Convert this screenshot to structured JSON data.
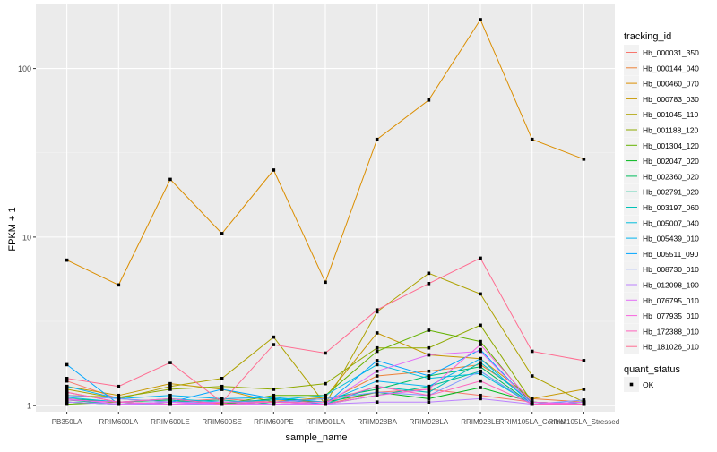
{
  "chart_data": {
    "type": "line",
    "xlabel": "sample_name",
    "ylabel": "FPKM + 1",
    "y_scale": "log10",
    "ylim": [
      0.92,
      240
    ],
    "y_ticks": [
      1,
      10,
      100
    ],
    "y_tick_labels": [
      "1",
      "10",
      "100"
    ],
    "grid": true,
    "legend_placement": "right",
    "categories": [
      "PB350LA",
      "RRIM600LA",
      "RRIM600LE",
      "RRIM600SE",
      "RRIM600PE",
      "RRIM901LA",
      "RRIM928BA",
      "RRIM928LA",
      "RRIM928LE",
      "RRIM105LA_Control",
      "RRIM105LA_Stressed"
    ],
    "legend_title": "tracking_id",
    "series": [
      {
        "name": "Hb_000031_350",
        "color": "#F8766D",
        "values": [
          1.4,
          1.1,
          1.05,
          1.1,
          1.05,
          1.02,
          1.2,
          1.25,
          1.15,
          1.05,
          1.02
        ]
      },
      {
        "name": "Hb_000144_040",
        "color": "#EC8239",
        "values": [
          1.2,
          1.05,
          1.02,
          1.04,
          1.08,
          1.05,
          1.5,
          1.6,
          1.75,
          1.1,
          1.05
        ]
      },
      {
        "name": "Hb_000460_070",
        "color": "#DB8E00",
        "values": [
          7.3,
          5.2,
          22.0,
          10.5,
          25.0,
          5.4,
          38.0,
          65.0,
          195.0,
          38.0,
          29.0
        ]
      },
      {
        "name": "Hb_000783_030",
        "color": "#C79800",
        "values": [
          1.3,
          1.15,
          1.35,
          1.25,
          1.05,
          1.12,
          2.7,
          2.0,
          1.9,
          1.1,
          1.25
        ]
      },
      {
        "name": "Hb_001045_110",
        "color": "#AEA200",
        "values": [
          1.25,
          1.1,
          1.3,
          1.45,
          2.55,
          1.02,
          3.6,
          6.1,
          4.6,
          1.5,
          1.05
        ]
      },
      {
        "name": "Hb_001188_120",
        "color": "#8FAA00",
        "values": [
          1.15,
          1.12,
          1.25,
          1.3,
          1.25,
          1.35,
          2.2,
          2.2,
          3.0,
          1.05,
          1.02
        ]
      },
      {
        "name": "Hb_001304_120",
        "color": "#64B200",
        "values": [
          1.02,
          1.05,
          1.02,
          1.02,
          1.15,
          1.15,
          2.1,
          2.8,
          2.4,
          1.02,
          1.05
        ]
      },
      {
        "name": "Hb_002047_020",
        "color": "#00B81B",
        "values": [
          1.05,
          1.02,
          1.02,
          1.02,
          1.1,
          1.05,
          1.2,
          1.1,
          1.28,
          1.05,
          1.02
        ]
      },
      {
        "name": "Hb_002360_020",
        "color": "#00BD5C",
        "values": [
          1.1,
          1.05,
          1.08,
          1.02,
          1.05,
          1.1,
          1.25,
          1.5,
          1.7,
          1.02,
          1.05
        ]
      },
      {
        "name": "Hb_002791_020",
        "color": "#00C08E",
        "values": [
          1.08,
          1.02,
          1.05,
          1.08,
          1.02,
          1.02,
          1.15,
          1.3,
          1.6,
          1.02,
          1.02
        ]
      },
      {
        "name": "Hb_003197_060",
        "color": "#00C1B7",
        "values": [
          1.05,
          1.02,
          1.02,
          1.02,
          1.05,
          1.02,
          1.3,
          1.2,
          1.8,
          1.05,
          1.02
        ]
      },
      {
        "name": "Hb_005007_040",
        "color": "#00BDDC",
        "values": [
          1.12,
          1.05,
          1.1,
          1.05,
          1.08,
          1.15,
          1.75,
          1.45,
          1.55,
          1.02,
          1.02
        ]
      },
      {
        "name": "Hb_005439_010",
        "color": "#00B4EF",
        "values": [
          1.3,
          1.1,
          1.15,
          1.1,
          1.12,
          1.05,
          1.4,
          1.3,
          1.9,
          1.02,
          1.05
        ]
      },
      {
        "name": "Hb_005511_090",
        "color": "#00A5FF",
        "values": [
          1.75,
          1.02,
          1.05,
          1.25,
          1.1,
          1.02,
          1.85,
          1.5,
          2.15,
          1.02,
          1.05
        ]
      },
      {
        "name": "Hb_008730_010",
        "color": "#7F96FF",
        "values": [
          1.15,
          1.1,
          1.05,
          1.05,
          1.05,
          1.1,
          1.2,
          1.15,
          1.6,
          1.02,
          1.08
        ]
      },
      {
        "name": "Hb_012098_190",
        "color": "#BC81FF",
        "values": [
          1.05,
          1.02,
          1.02,
          1.02,
          1.02,
          1.02,
          1.05,
          1.05,
          1.1,
          1.02,
          1.02
        ]
      },
      {
        "name": "Hb_076795_010",
        "color": "#E26EF7",
        "values": [
          1.1,
          1.02,
          1.05,
          1.02,
          1.02,
          1.02,
          1.6,
          2.0,
          2.1,
          1.02,
          1.05
        ]
      },
      {
        "name": "Hb_077935_010",
        "color": "#F863DF",
        "values": [
          1.08,
          1.05,
          1.02,
          1.05,
          1.05,
          1.02,
          1.15,
          1.25,
          2.3,
          1.05,
          1.02
        ]
      },
      {
        "name": "Hb_172388_010",
        "color": "#FF62BC",
        "values": [
          1.2,
          1.05,
          1.1,
          1.02,
          1.05,
          1.05,
          1.3,
          1.15,
          1.4,
          1.02,
          1.02
        ]
      },
      {
        "name": "Hb_181026_010",
        "color": "#FF6C91",
        "values": [
          1.45,
          1.3,
          1.8,
          1.05,
          2.3,
          2.05,
          3.7,
          5.3,
          7.5,
          2.1,
          1.85
        ]
      }
    ],
    "legend2_title": "quant_status",
    "legend2_items": [
      "OK"
    ]
  },
  "style": {
    "panel_bg": "#EBEBEB",
    "grid_major": "#FFFFFF",
    "point_color": "#000000",
    "text_color": "#4D4D4D"
  }
}
